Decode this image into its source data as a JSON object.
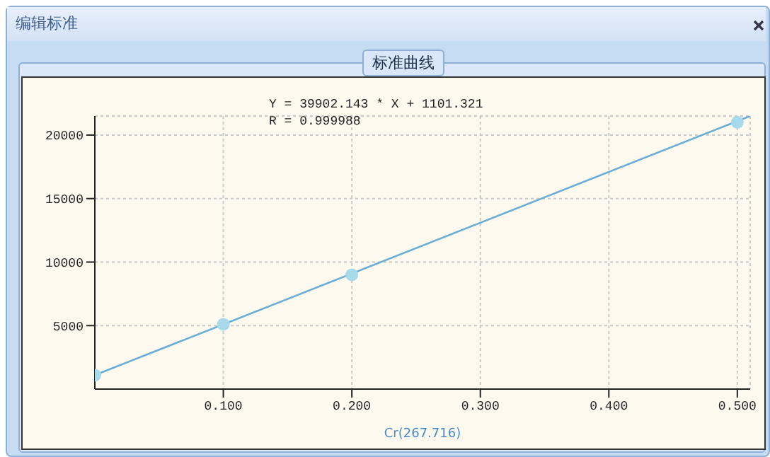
{
  "chart_data": {
    "type": "scatter",
    "title": "标准曲线",
    "xlabel": "Cr(267.716)",
    "annotations": [
      "编辑标准",
      "Y = 39902.143 * X + 1101.321",
      "R = 0.999988"
    ],
    "series": [
      {
        "color": "#a6d9ea",
        "marker": "circle",
        "x": [
          0,
          0.1,
          0.2,
          0.5
        ],
        "values": [
          1100,
          5100,
          9000,
          21000
        ]
      },
      {
        "type": "line",
        "color": "#6aaed6",
        "marker": "none",
        "x": [
          0,
          0.51
        ],
        "values": [
          1100,
          21500
        ]
      }
    ],
    "xlim": [
      0,
      0.51
    ],
    "xticks": [
      {
        "value": 0.1,
        "label": "0.100"
      },
      {
        "value": 0.2,
        "label": "0.200"
      },
      {
        "value": 0.3,
        "label": "0.300"
      },
      {
        "value": 0.4,
        "label": "0.400"
      },
      {
        "value": 0.5,
        "label": "0.500"
      }
    ],
    "ylim": [
      0,
      21500
    ],
    "yticks": [
      5000,
      10000,
      15000,
      20000
    ],
    "grid": true
  }
}
